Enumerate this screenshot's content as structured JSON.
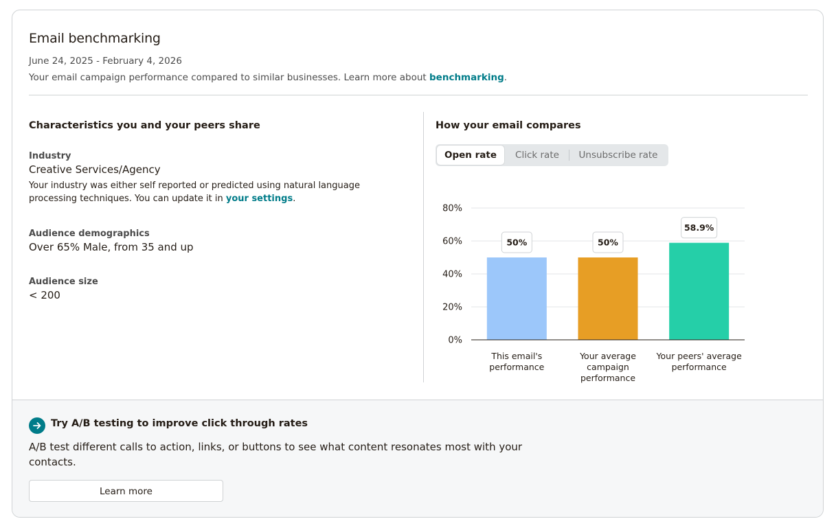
{
  "header": {
    "title": "Email benchmarking",
    "date_range": "June 24, 2025 - February 4, 2026",
    "subtitle_prefix": "Your email campaign performance compared to similar businesses. Learn more about ",
    "subtitle_link": "benchmarking",
    "subtitle_suffix": "."
  },
  "characteristics": {
    "title": "Characteristics you and your peers share",
    "industry": {
      "label": "Industry",
      "value": "Creative Services/Agency",
      "note_prefix": "Your industry was either self reported or predicted using natural language processing techniques. You can update it in ",
      "note_link": "your settings",
      "note_suffix": "."
    },
    "demographics": {
      "label": "Audience demographics",
      "value": "Over 65% Male, from 35 and up"
    },
    "audience_size": {
      "label": "Audience size",
      "value": "< 200"
    }
  },
  "comparison": {
    "title": "How your email compares",
    "tabs": [
      {
        "label": "Open rate",
        "active": true
      },
      {
        "label": "Click rate",
        "active": false
      },
      {
        "label": "Unsubscribe rate",
        "active": false
      }
    ]
  },
  "chart_data": {
    "type": "bar",
    "categories": [
      [
        "This email's",
        "performance"
      ],
      [
        "Your average",
        "campaign",
        "performance"
      ],
      [
        "Your peers' average",
        "performance"
      ]
    ],
    "values": [
      50,
      50,
      58.9
    ],
    "value_labels": [
      "50%",
      "50%",
      "58.9%"
    ],
    "colors": [
      "#9cc7fa",
      "#e79e25",
      "#25cfa8"
    ],
    "yticks": [
      "0%",
      "20%",
      "40%",
      "60%",
      "80%"
    ],
    "ylim": [
      0,
      80
    ],
    "grid": true
  },
  "footer": {
    "title": "Try A/B testing to improve click through rates",
    "body": "A/B test different calls to action, links, or buttons to see what content resonates most with your contacts.",
    "button_label": "Learn more"
  }
}
